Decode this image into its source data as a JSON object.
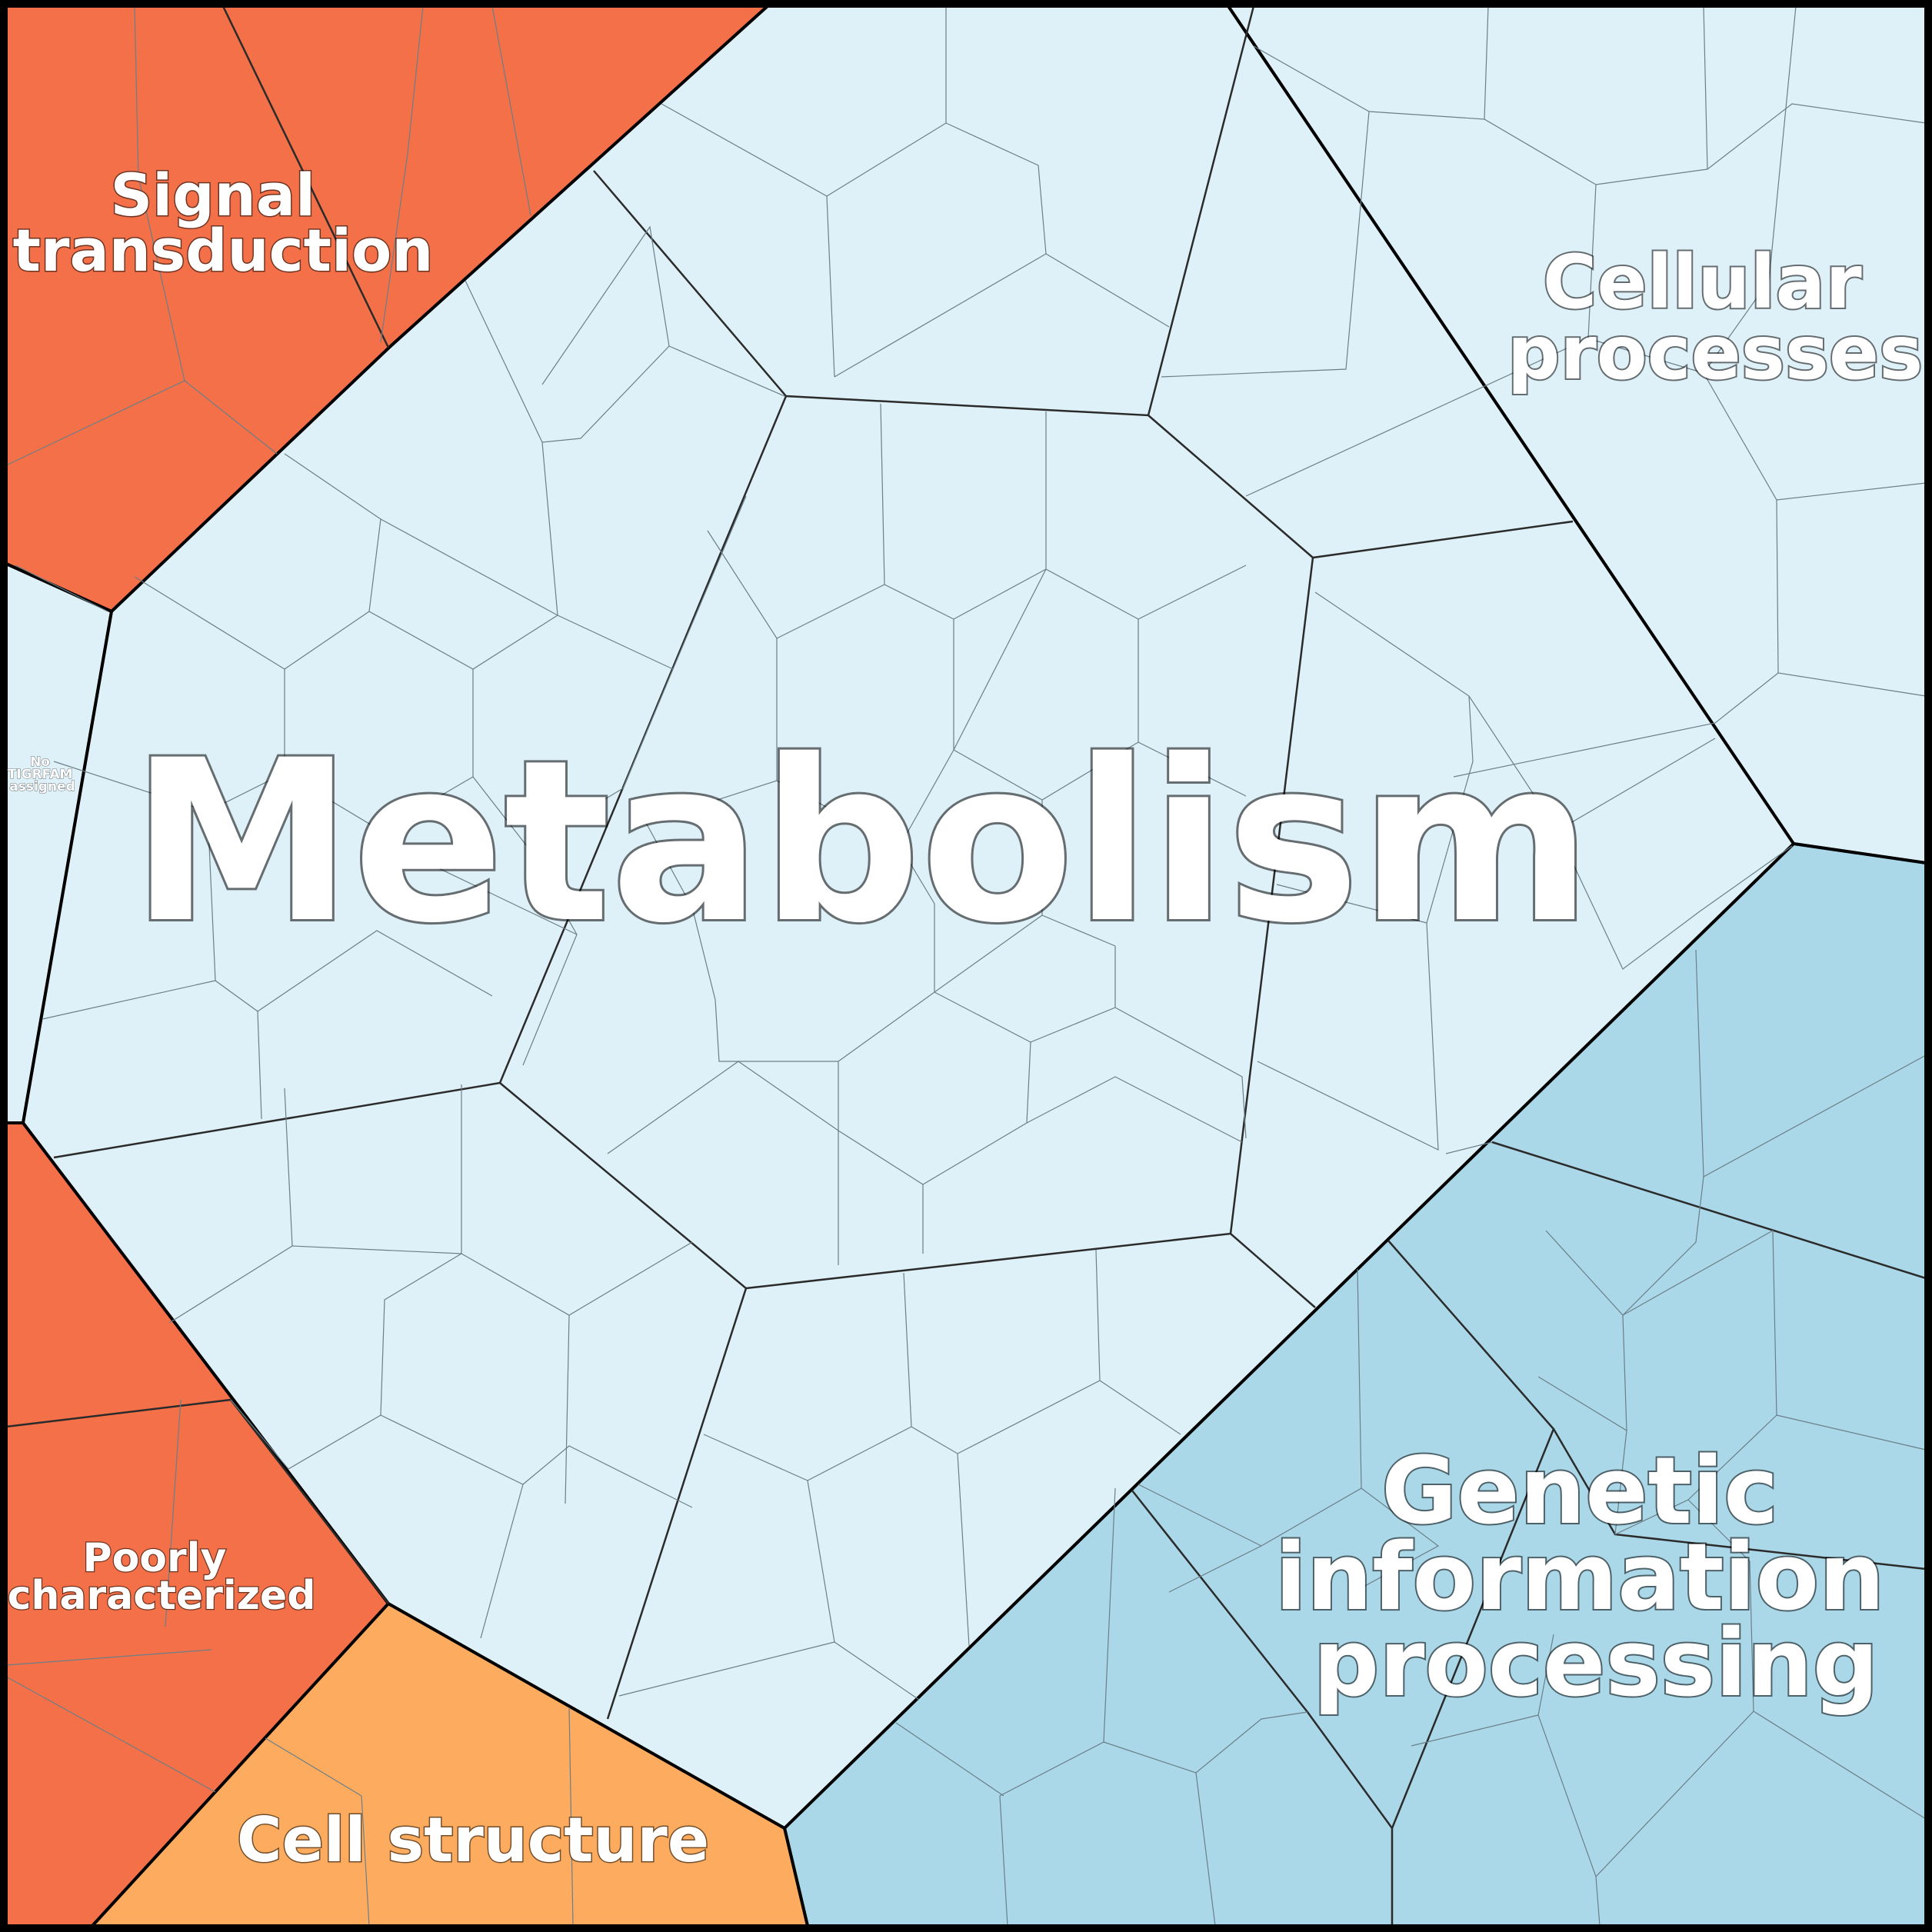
{
  "treemap": {
    "regions": [
      {
        "key": "metabolism",
        "label": [
          "Metabolism"
        ],
        "color": "#dff1f8"
      },
      {
        "key": "cellular",
        "label": [
          "Cellular",
          "processes"
        ],
        "color": "#dff1f8"
      },
      {
        "key": "genetic",
        "label": [
          "Genetic",
          "information",
          "processing"
        ],
        "color": "#abd8e8"
      },
      {
        "key": "signal",
        "label": [
          "Signal",
          "transduction"
        ],
        "color": "#f37048"
      },
      {
        "key": "poorly",
        "label": [
          "Poorly",
          "characterized"
        ],
        "color": "#f37048"
      },
      {
        "key": "cellstructure",
        "label": [
          "Cell structure"
        ],
        "color": "#fdab5e"
      },
      {
        "key": "notigrfam",
        "label": [
          "No",
          "TIGRFAM",
          "assigned"
        ],
        "color": "#dff1f8"
      }
    ]
  }
}
